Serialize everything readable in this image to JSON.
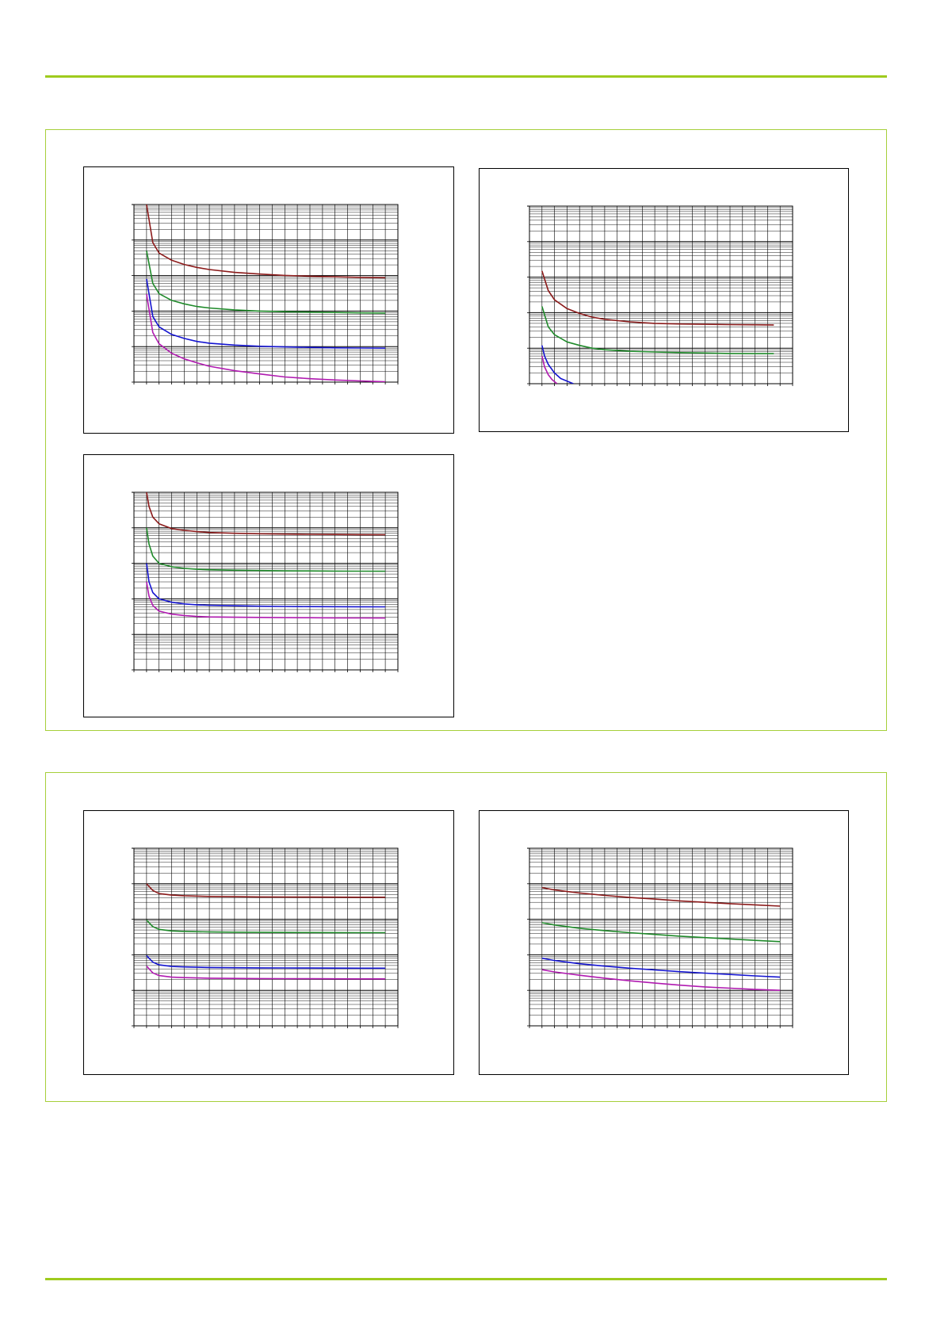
{
  "colors": {
    "accent": "#9fcb1e",
    "panel_border": "#a6cf3a",
    "series": [
      "#8b1a1a",
      "#1f8a2a",
      "#1414d0",
      "#b01ab0"
    ]
  },
  "panels": [
    {
      "title": ""
    },
    {
      "title": ""
    }
  ],
  "chart_data": [
    {
      "type": "line",
      "title": "",
      "xlabel": "",
      "ylabel": "",
      "xlim": [
        0,
        21
      ],
      "yscale": "log",
      "ylim": [
        1,
        100000
      ],
      "grid": true,
      "x": [
        1,
        1.5,
        2,
        3,
        4,
        5,
        6,
        8,
        10,
        12,
        14,
        16,
        18,
        20
      ],
      "series": [
        {
          "values": [
            100000,
            8500,
            4300,
            2700,
            2050,
            1700,
            1480,
            1230,
            1100,
            1010,
            960,
            920,
            890,
            870
          ]
        },
        {
          "values": [
            5000,
            600,
            310,
            200,
            160,
            135,
            122,
            108,
            100,
            96,
            93,
            91,
            89,
            88
          ]
        },
        {
          "values": [
            800,
            70,
            36,
            22,
            17,
            14,
            12.5,
            11,
            10.2,
            9.8,
            9.5,
            9.2,
            9.1,
            9
          ]
        },
        {
          "values": [
            300,
            25,
            12,
            6.5,
            4.5,
            3.5,
            2.8,
            2.1,
            1.7,
            1.4,
            1.25,
            1.15,
            1.08,
            1.02
          ]
        }
      ]
    },
    {
      "type": "line",
      "title": "",
      "xlabel": "",
      "ylabel": "",
      "xlim": [
        0,
        21
      ],
      "yscale": "log",
      "ylim": [
        1,
        100000
      ],
      "grid": true,
      "x": [
        1,
        1.5,
        2,
        3,
        4,
        5,
        6,
        8,
        10,
        12,
        14,
        16,
        18,
        19.5
      ],
      "series": [
        {
          "values": [
            1500,
            420,
            230,
            130,
            95,
            75,
            65,
            55,
            50,
            48,
            47,
            46,
            45.5,
            45
          ]
        },
        {
          "values": [
            150,
            40,
            24,
            15,
            12,
            10,
            9,
            8.2,
            7.8,
            7.5,
            7.3,
            7.1,
            7,
            7
          ]
        },
        {
          "x": [
            1,
            1.2,
            1.5,
            2,
            2.5,
            3.5
          ],
          "values": [
            12,
            6,
            3.5,
            2,
            1.4,
            1
          ]
        },
        {
          "x": [
            1,
            1.2,
            1.5,
            1.8,
            2.2
          ],
          "values": [
            6,
            3,
            1.8,
            1.3,
            1
          ]
        }
      ]
    },
    {
      "type": "line",
      "title": "",
      "xlabel": "",
      "ylabel": "",
      "xlim": [
        0,
        21
      ],
      "yscale": "log",
      "ylim": [
        1,
        100000
      ],
      "grid": true,
      "x": [
        1,
        1.2,
        1.5,
        2,
        3,
        4,
        5,
        6,
        8,
        10,
        12,
        14,
        16,
        18,
        20
      ],
      "series": [
        {
          "values": [
            100000,
            40000,
            20000,
            13000,
            9500,
            8500,
            7800,
            7400,
            7000,
            6800,
            6650,
            6550,
            6480,
            6420,
            6380
          ]
        },
        {
          "values": [
            10000,
            3500,
            1600,
            1000,
            800,
            720,
            680,
            660,
            640,
            625,
            615,
            610,
            605,
            600,
            598
          ]
        },
        {
          "values": [
            1000,
            300,
            150,
            100,
            80,
            72,
            68,
            66,
            64,
            62,
            61,
            60.5,
            60,
            59.8,
            59.6
          ]
        },
        {
          "values": [
            300,
            120,
            65,
            45,
            37,
            34,
            32,
            31,
            30.3,
            30,
            29.6,
            29.4,
            29.2,
            29,
            28.8
          ]
        }
      ]
    },
    {
      "type": "line",
      "title": "",
      "xlabel": "",
      "ylabel": "",
      "xlim": [
        0,
        21
      ],
      "yscale": "log",
      "ylim": [
        1,
        100000
      ],
      "grid": true,
      "x": [
        1,
        1.5,
        2,
        3,
        4,
        6,
        8,
        10,
        12,
        14,
        16,
        18,
        20
      ],
      "series": [
        {
          "values": [
            10000,
            6500,
            5300,
            4800,
            4600,
            4400,
            4320,
            4270,
            4240,
            4210,
            4190,
            4180,
            4170
          ]
        },
        {
          "values": [
            950,
            620,
            520,
            470,
            455,
            440,
            432,
            428,
            425,
            423,
            421,
            420,
            419
          ]
        },
        {
          "values": [
            95,
            62,
            52,
            47,
            45.5,
            44,
            43.2,
            42.8,
            42.5,
            42.3,
            42.1,
            42,
            41.9
          ]
        },
        {
          "values": [
            48,
            31,
            26,
            23.5,
            22.8,
            22,
            21.6,
            21.4,
            21.3,
            21.2,
            21.1,
            21,
            21
          ]
        }
      ]
    },
    {
      "type": "line",
      "title": "",
      "xlabel": "",
      "ylabel": "",
      "xlim": [
        0,
        21
      ],
      "yscale": "log",
      "ylim": [
        1,
        100000
      ],
      "grid": true,
      "x": [
        1,
        2,
        4,
        6,
        8,
        10,
        12,
        14,
        16,
        18,
        20
      ],
      "series": [
        {
          "values": [
            7800,
            6700,
            5500,
            4700,
            4100,
            3700,
            3300,
            3000,
            2750,
            2550,
            2350
          ]
        },
        {
          "values": [
            800,
            690,
            560,
            480,
            420,
            375,
            335,
            305,
            280,
            255,
            235
          ]
        },
        {
          "values": [
            80,
            69,
            56,
            48,
            42,
            37.5,
            33.5,
            30.5,
            28,
            25.5,
            23.5
          ]
        },
        {
          "values": [
            38,
            33,
            26.5,
            22,
            18.5,
            16,
            14,
            12.5,
            11.5,
            10.6,
            10
          ]
        }
      ]
    }
  ]
}
